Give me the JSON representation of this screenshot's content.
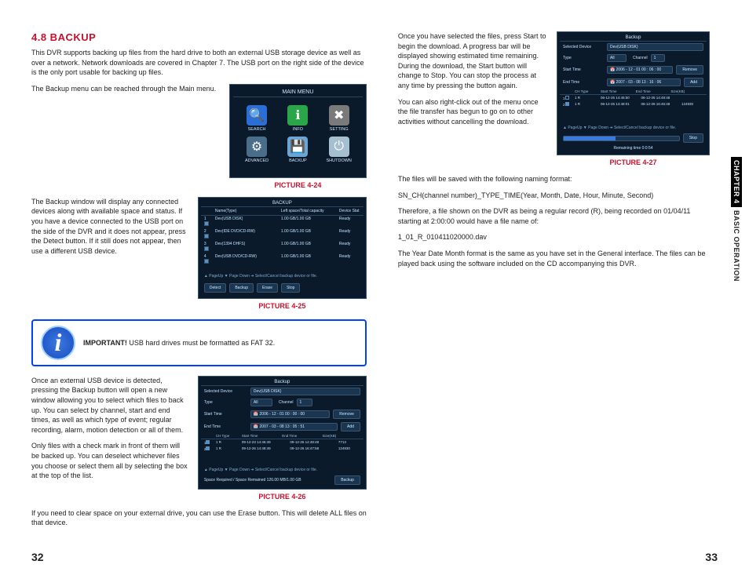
{
  "heading": "4.8 BACKUP",
  "intro": "This DVR supports backing up files from the hard drive to both an external USB storage device as well as over a network. Network downloads are covered in Chapter 7. The USB port on the right side of the device is the only port usable for backing up files.",
  "p1": "The Backup menu can be reached through the Main menu.",
  "p2": "The Backup window will display any connected devices along with available space and status. If you have a device connected to the USB port on the side of the DVR and it does not appear, press the Detect button. If it still does not appear, then use a different USB device.",
  "p3": "USB hard drives must be formatted as FAT 32.",
  "p3_label": "IMPORTANT!",
  "p4": "Once an external USB device is detected, pressing the Backup button will open a new window allowing you to select which files to back up. You can select by channel, start and end times, as well as which type of event; regular recording, alarm, motion detection or all of them.",
  "p5": "Only files with a check mark in front of them will be backed up. You can deselect whichever files you choose or select them all by selecting the box at the top of the list.",
  "p6": "If you need to clear space on your external drive, you can use the Erase button. This will delete ALL files on that device.",
  "r1": "Once you have selected the files, press Start to begin the download. A progress bar will be displayed showing estimated time remaining. During the download, the Start button will change to Stop. You can stop the process at any time by pressing the button again.",
  "r2": "You can also right-click out of the menu once the file transfer has begun to go on to other activities without cancelling the download.",
  "r3": "The files will be saved with the following naming format:",
  "r4": "SN_CH(channel number)_TYPE_TIME(Year, Month, Date, Hour, Minute, Second)",
  "r5": "Therefore, a file shown on the DVR as being a regular record (R), being recorded on 01/04/11 starting at 2:00:00 would have a file name of:",
  "r6": "1_01_R_010411020000.dav",
  "r7": " The Year Date Month format is the same as you have set in the General interface. The files can be played back using the software included on the CD accompanying this DVR.",
  "cap24": "PICTURE 4-24",
  "cap25": "PICTURE 4-25",
  "cap26": "PICTURE 4-26",
  "cap27": "PICTURE 4-27",
  "page_left": "32",
  "page_right": "33",
  "side_chapter": "CHAPTER 4",
  "side_title": "BASIC OPERATION",
  "ss24": {
    "title": "MAIN MENU",
    "icons": [
      {
        "glyph": "🔍",
        "label": "SEARCH",
        "bg": "#2a6ed6"
      },
      {
        "glyph": "ℹ",
        "label": "INFO",
        "bg": "#2aa54a"
      },
      {
        "glyph": "✖",
        "label": "SETTING",
        "bg": "#7a7a7a"
      },
      {
        "glyph": "⚙",
        "label": "ADVANCED",
        "bg": "#4a6e8a"
      },
      {
        "glyph": "💾",
        "label": "BACKUP",
        "bg": "#6aa5d6"
      },
      {
        "glyph": "⏻",
        "label": "SHUTDOWN",
        "bg": "#a5bfd0"
      }
    ]
  },
  "ss25": {
    "title": "BACKUP",
    "headers": [
      "",
      "Name(Type)",
      "Left space/Total capacity",
      "Device Stat"
    ],
    "rows": [
      {
        "c": true,
        "n": "Dev(USB DISK)",
        "s": "1.00 GB/1.00 GB",
        "st": "Ready"
      },
      {
        "c": true,
        "n": "Dev(IDE DVD/CD-RW)",
        "s": "1.00 GB/1.00 GB",
        "st": "Ready"
      },
      {
        "c": true,
        "n": "Dev(1394 DHFS)",
        "s": "1.00 GB/1.00 GB",
        "st": "Ready"
      },
      {
        "c": true,
        "n": "Dev(USB DVD/CD-RW)",
        "s": "1.00 GB/1.00 GB",
        "st": "Ready"
      }
    ],
    "hint": "▲ PageUp  ▼ Page Down  ➜ Select/Cancel backup device or file.",
    "btns": [
      "Detect",
      "Backup",
      "Erase",
      "Stop"
    ]
  },
  "ss26": {
    "title": "Backup",
    "dev_lbl": "Selected Device",
    "dev": "Dev(USB DISK)",
    "type_lbl": "Type",
    "type": "All",
    "ch_lbl": "Channel",
    "ch": "1",
    "st_lbl": "Start Time",
    "st": "2006 - 12 - 01  00 : 00 : 00",
    "et_lbl": "End Time",
    "et": "2007 - 03 - 08  13 : 05 : 51",
    "btn_remove": "Remove",
    "btn_add": "Add",
    "hdr": [
      "",
      "CH Type",
      "Start Time",
      "End Time",
      "Size(KB)"
    ],
    "rows": [
      {
        "c": true,
        "i": "1",
        "t": "1 R",
        "s": "09-12-23 14:46:49",
        "e": "09-12-26 14:48:48",
        "z": "7713"
      },
      {
        "c": true,
        "i": "2",
        "t": "1 R",
        "s": "09-12-26 14:48:49",
        "e": "09-12-26 16:47:58",
        "z": "124930"
      }
    ],
    "hint": "▲ PageUp  ▼ Page Down  ➜ Select/Cancel backup device or file.",
    "foot_lbl": "Space Required / Space Remained 126.00 MB/1.00 GB",
    "foot_btn": "Backup"
  },
  "ss27": {
    "title": "Backup",
    "dev_lbl": "Selected Device",
    "dev": "Dev(USB DISK)",
    "type_lbl": "Type",
    "type": "All",
    "ch_lbl": "Channel",
    "ch": "1",
    "st_lbl": "Start Time",
    "st": "2006 - 12 - 01  00 : 06 : 00",
    "et_lbl": "End Time",
    "et": "2007 - 03 - 08  13 : 16 : 06",
    "btn_remove": "Remove",
    "btn_add": "Add",
    "hdr": [
      "",
      "CH Type",
      "Start Time",
      "End Time",
      "Size(KB)"
    ],
    "rows": [
      {
        "c": false,
        "i": "1",
        "t": "1 R",
        "s": "06-12-26 14:45:50",
        "e": "06-12-26 14:48:48",
        "z": ""
      },
      {
        "c": true,
        "i": "2",
        "t": "1 R",
        "s": "06-12-26 14:48:01",
        "e": "06-12-26 16:46:48",
        "z": "124930"
      }
    ],
    "hint": "▲ PageUp  ▼ Page Down  ➜ Select/Cancel backup device or file.",
    "prog_lbl": "Remaining time 0:0:54",
    "prog_pct": 45,
    "btn_stop": "Stop"
  }
}
